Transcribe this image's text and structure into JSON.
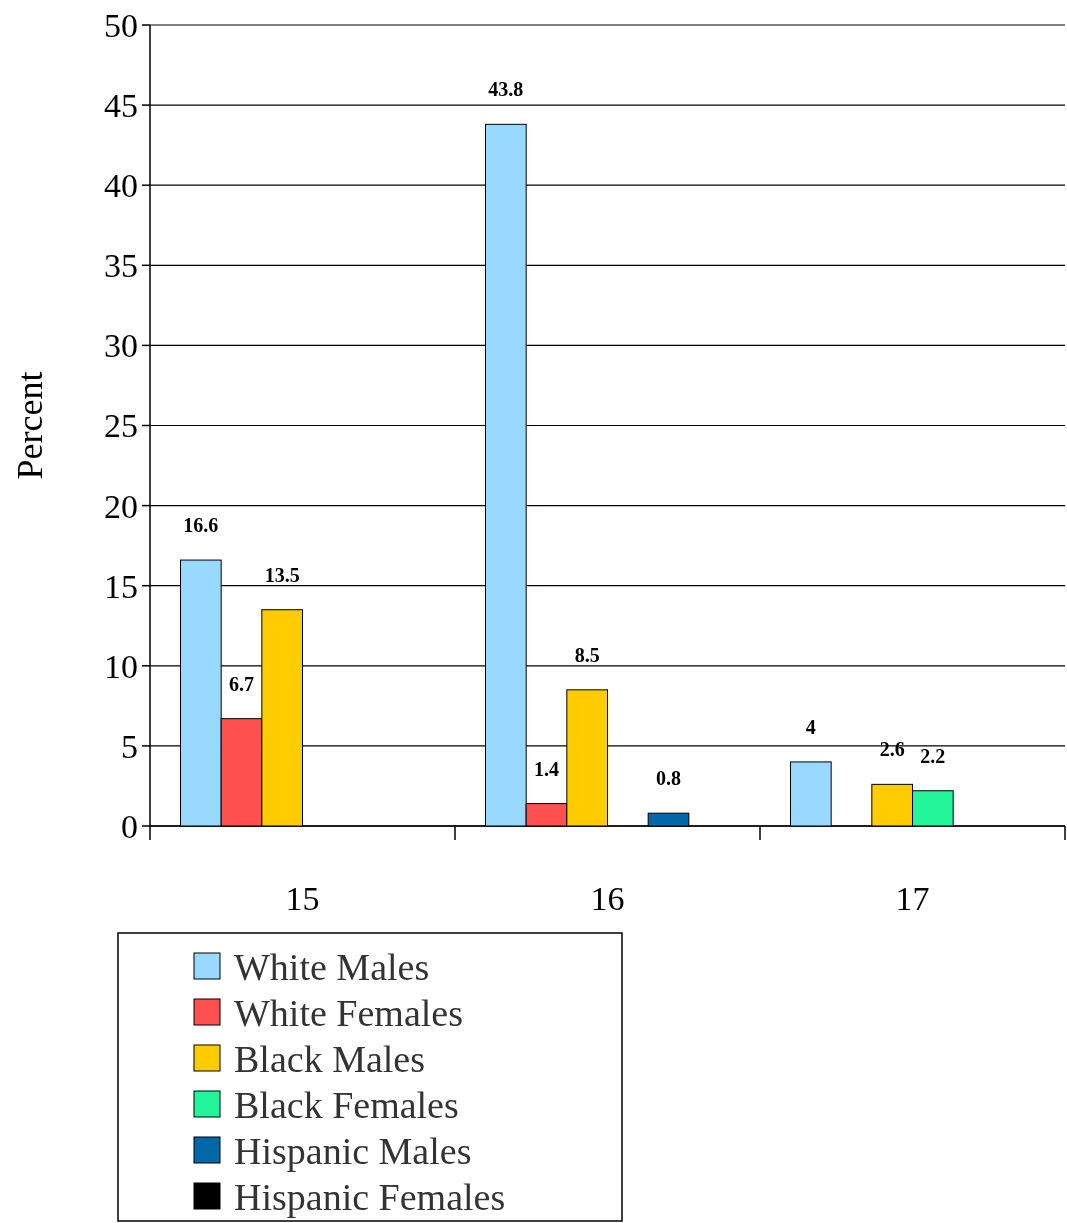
{
  "chart_data": {
    "type": "bar",
    "ylabel": "Percent",
    "categories": [
      "15",
      "16",
      "17"
    ],
    "series": [
      {
        "name": "White Males",
        "color": "#99d9ff",
        "values": [
          16.6,
          43.8,
          4
        ]
      },
      {
        "name": "White Females",
        "color": "#ff5050",
        "values": [
          6.7,
          1.4,
          null
        ]
      },
      {
        "name": "Black Males",
        "color": "#ffcc00",
        "values": [
          13.5,
          8.5,
          2.6
        ]
      },
      {
        "name": "Black Females",
        "color": "#22f59a",
        "values": [
          null,
          null,
          2.2
        ]
      },
      {
        "name": "Hispanic Males",
        "color": "#0068a8",
        "values": [
          null,
          0.8,
          null
        ]
      },
      {
        "name": "Hispanic Females",
        "color": "#000000",
        "values": [
          null,
          null,
          null
        ]
      }
    ],
    "ylim": [
      0,
      50
    ],
    "yticks": [
      0,
      5,
      10,
      15,
      20,
      25,
      30,
      35,
      40,
      45,
      50
    ],
    "grid": "y",
    "data_labels": true,
    "legend": "bottom"
  }
}
